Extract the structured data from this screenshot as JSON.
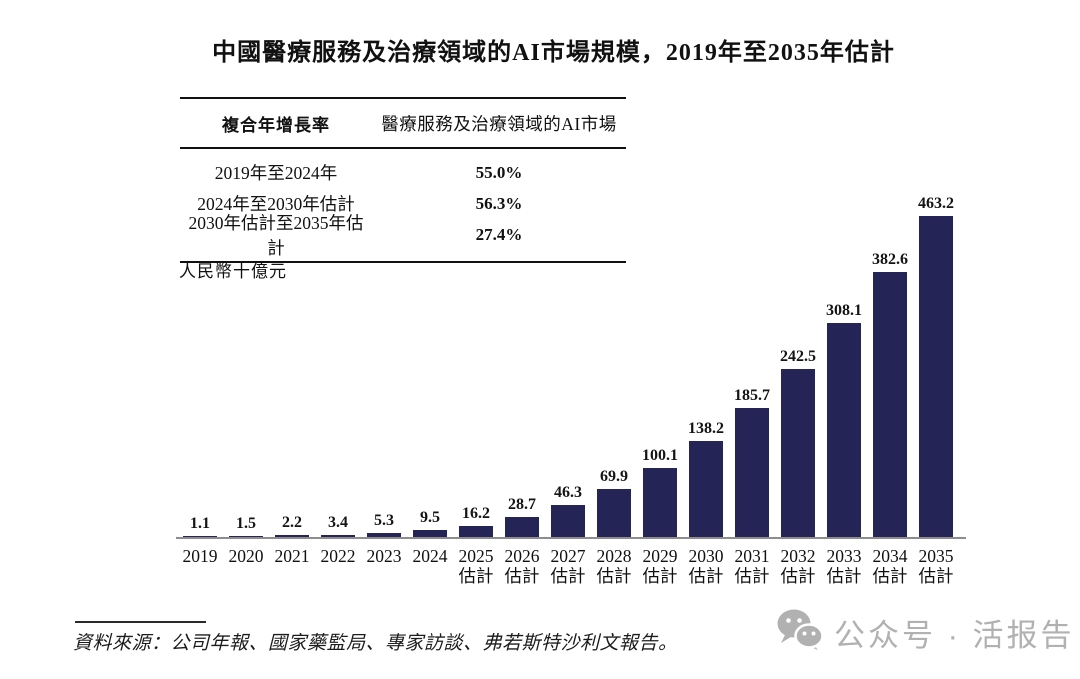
{
  "title": "中國醫療服務及治療領域的AI市場規模，2019年至2035年估計",
  "cagr_table": {
    "headers": {
      "col1": "複合年增長率",
      "col2": "醫療服務及治療領域的AI市場"
    },
    "rows": [
      {
        "period": "2019年至2024年",
        "value": "55.0%"
      },
      {
        "period": "2024年至2030年估計",
        "value": "56.3%"
      },
      {
        "period": "2030年估計至2035年估計",
        "value": "27.4%"
      }
    ]
  },
  "unit_label": "人民幣十億元",
  "chart_data": {
    "type": "bar",
    "title": "中國醫療服務及治療領域的AI市場規模，2019年至2035年估計",
    "ylabel": "人民幣十億元",
    "xlabel": "",
    "categories": [
      "2019",
      "2020",
      "2021",
      "2022",
      "2023",
      "2024",
      "2025估計",
      "2026估計",
      "2027估計",
      "2028估計",
      "2029估計",
      "2030估計",
      "2031估計",
      "2032估計",
      "2033估計",
      "2034估計",
      "2035估計"
    ],
    "x_ticks": [
      {
        "year": "2019",
        "note": ""
      },
      {
        "year": "2020",
        "note": ""
      },
      {
        "year": "2021",
        "note": ""
      },
      {
        "year": "2022",
        "note": ""
      },
      {
        "year": "2023",
        "note": ""
      },
      {
        "year": "2024",
        "note": ""
      },
      {
        "year": "2025",
        "note": "估計"
      },
      {
        "year": "2026",
        "note": "估計"
      },
      {
        "year": "2027",
        "note": "估計"
      },
      {
        "year": "2028",
        "note": "估計"
      },
      {
        "year": "2029",
        "note": "估計"
      },
      {
        "year": "2030",
        "note": "估計"
      },
      {
        "year": "2031",
        "note": "估計"
      },
      {
        "year": "2032",
        "note": "估計"
      },
      {
        "year": "2033",
        "note": "估計"
      },
      {
        "year": "2034",
        "note": "估計"
      },
      {
        "year": "2035",
        "note": "估計"
      }
    ],
    "values": [
      1.1,
      1.5,
      2.2,
      3.4,
      5.3,
      9.5,
      16.2,
      28.7,
      46.3,
      69.9,
      100.1,
      138.2,
      185.7,
      242.5,
      308.1,
      382.6,
      463.2
    ],
    "ylim": [
      0,
      480
    ],
    "grid": false,
    "legend": null,
    "bar_color": "#252456",
    "value_label_color": "#141414"
  },
  "footer": {
    "source_text": "資料來源：公司年報、國家藥監局、專家訪談、弗若斯特沙利文報告。"
  },
  "watermark": {
    "icon": "wechat-icon",
    "text": "公众号 · 活报告",
    "color": "#b1b1b1"
  }
}
